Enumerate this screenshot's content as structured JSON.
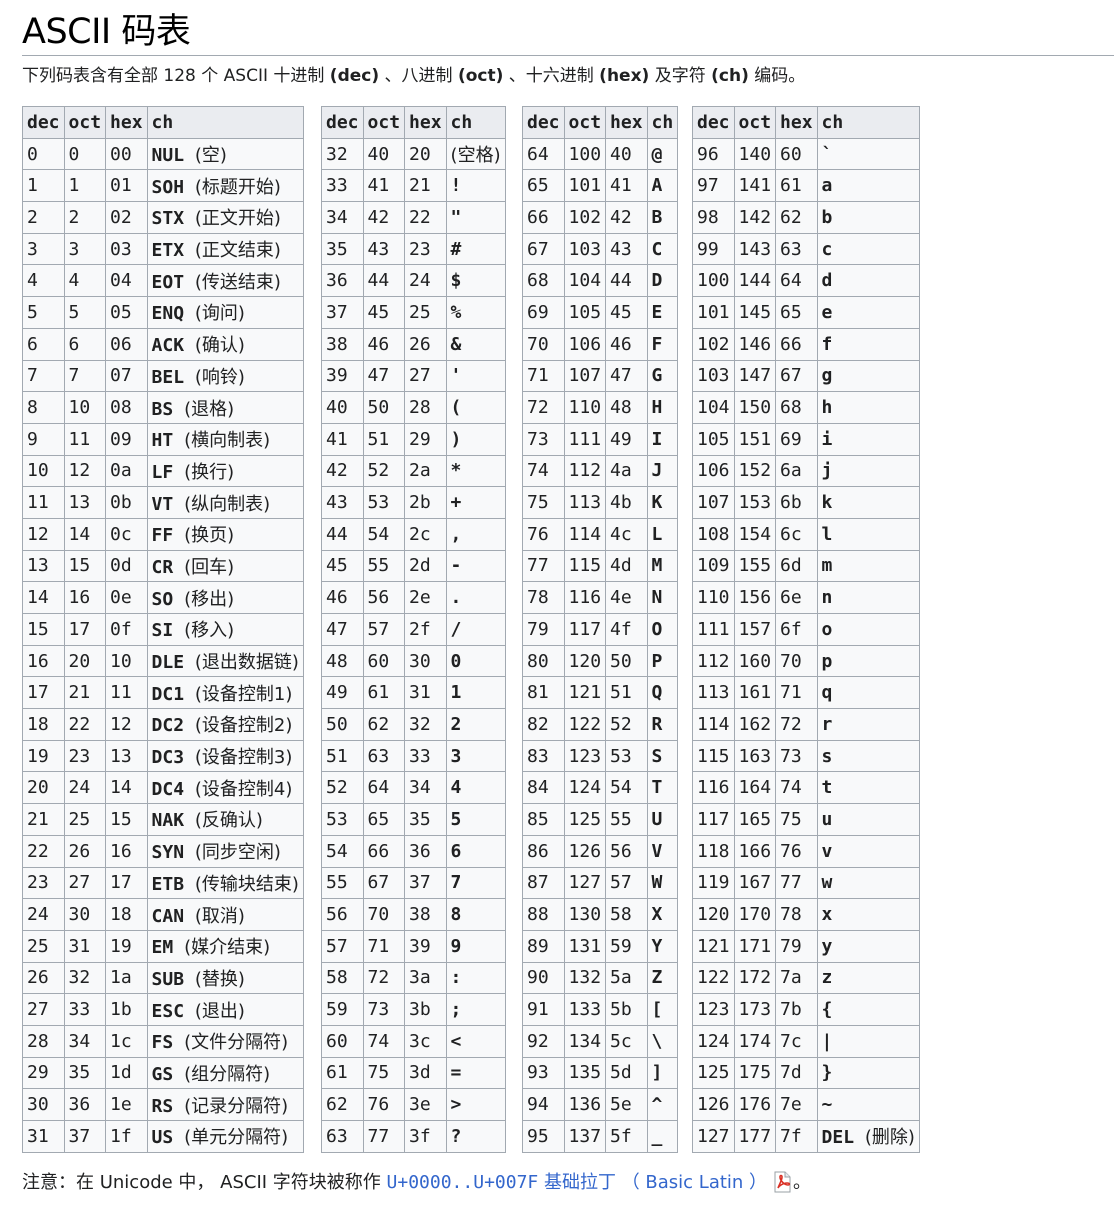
{
  "title": "ASCII 码表",
  "intro": {
    "prefix": "下列码表含有全部 128 个 ASCII 十进制 ",
    "dec": "(dec)",
    "sep1": " 、八进制 ",
    "oct": "(oct)",
    "sep2": " 、十六进制 ",
    "hex": "(hex)",
    "sep3": " 及字符 ",
    "ch": "(ch)",
    "suffix": " 编码。"
  },
  "headers": [
    "dec",
    "oct",
    "hex",
    "ch"
  ],
  "tables": [
    [
      [
        "0",
        "0",
        "00",
        "NUL",
        "(空)"
      ],
      [
        "1",
        "1",
        "01",
        "SOH",
        "(标题开始)"
      ],
      [
        "2",
        "2",
        "02",
        "STX",
        "(正文开始)"
      ],
      [
        "3",
        "3",
        "03",
        "ETX",
        "(正文结束)"
      ],
      [
        "4",
        "4",
        "04",
        "EOT",
        "(传送结束)"
      ],
      [
        "5",
        "5",
        "05",
        "ENQ",
        "(询问)"
      ],
      [
        "6",
        "6",
        "06",
        "ACK",
        "(确认)"
      ],
      [
        "7",
        "7",
        "07",
        "BEL",
        "(响铃)"
      ],
      [
        "8",
        "10",
        "08",
        "BS",
        "(退格)"
      ],
      [
        "9",
        "11",
        "09",
        "HT",
        "(横向制表)"
      ],
      [
        "10",
        "12",
        "0a",
        "LF",
        "(换行)"
      ],
      [
        "11",
        "13",
        "0b",
        "VT",
        "(纵向制表)"
      ],
      [
        "12",
        "14",
        "0c",
        "FF",
        "(换页)"
      ],
      [
        "13",
        "15",
        "0d",
        "CR",
        "(回车)"
      ],
      [
        "14",
        "16",
        "0e",
        "SO",
        "(移出)"
      ],
      [
        "15",
        "17",
        "0f",
        "SI",
        "(移入)"
      ],
      [
        "16",
        "20",
        "10",
        "DLE",
        "(退出数据链)"
      ],
      [
        "17",
        "21",
        "11",
        "DC1",
        "(设备控制1)"
      ],
      [
        "18",
        "22",
        "12",
        "DC2",
        "(设备控制2)"
      ],
      [
        "19",
        "23",
        "13",
        "DC3",
        "(设备控制3)"
      ],
      [
        "20",
        "24",
        "14",
        "DC4",
        "(设备控制4)"
      ],
      [
        "21",
        "25",
        "15",
        "NAK",
        "(反确认)"
      ],
      [
        "22",
        "26",
        "16",
        "SYN",
        "(同步空闲)"
      ],
      [
        "23",
        "27",
        "17",
        "ETB",
        "(传输块结束)"
      ],
      [
        "24",
        "30",
        "18",
        "CAN",
        "(取消)"
      ],
      [
        "25",
        "31",
        "19",
        "EM",
        "(媒介结束)"
      ],
      [
        "26",
        "32",
        "1a",
        "SUB",
        "(替换)"
      ],
      [
        "27",
        "33",
        "1b",
        "ESC",
        "(退出)"
      ],
      [
        "28",
        "34",
        "1c",
        "FS",
        "(文件分隔符)"
      ],
      [
        "29",
        "35",
        "1d",
        "GS",
        "(组分隔符)"
      ],
      [
        "30",
        "36",
        "1e",
        "RS",
        "(记录分隔符)"
      ],
      [
        "31",
        "37",
        "1f",
        "US",
        "(单元分隔符)"
      ]
    ],
    [
      [
        "32",
        "40",
        "20",
        "",
        "(空格)"
      ],
      [
        "33",
        "41",
        "21",
        "!",
        ""
      ],
      [
        "34",
        "42",
        "22",
        "\"",
        ""
      ],
      [
        "35",
        "43",
        "23",
        "#",
        ""
      ],
      [
        "36",
        "44",
        "24",
        "$",
        ""
      ],
      [
        "37",
        "45",
        "25",
        "%",
        ""
      ],
      [
        "38",
        "46",
        "26",
        "&",
        ""
      ],
      [
        "39",
        "47",
        "27",
        "'",
        ""
      ],
      [
        "40",
        "50",
        "28",
        "(",
        ""
      ],
      [
        "41",
        "51",
        "29",
        ")",
        ""
      ],
      [
        "42",
        "52",
        "2a",
        "*",
        ""
      ],
      [
        "43",
        "53",
        "2b",
        "+",
        ""
      ],
      [
        "44",
        "54",
        "2c",
        ",",
        ""
      ],
      [
        "45",
        "55",
        "2d",
        "-",
        ""
      ],
      [
        "46",
        "56",
        "2e",
        ".",
        ""
      ],
      [
        "47",
        "57",
        "2f",
        "/",
        ""
      ],
      [
        "48",
        "60",
        "30",
        "0",
        ""
      ],
      [
        "49",
        "61",
        "31",
        "1",
        ""
      ],
      [
        "50",
        "62",
        "32",
        "2",
        ""
      ],
      [
        "51",
        "63",
        "33",
        "3",
        ""
      ],
      [
        "52",
        "64",
        "34",
        "4",
        ""
      ],
      [
        "53",
        "65",
        "35",
        "5",
        ""
      ],
      [
        "54",
        "66",
        "36",
        "6",
        ""
      ],
      [
        "55",
        "67",
        "37",
        "7",
        ""
      ],
      [
        "56",
        "70",
        "38",
        "8",
        ""
      ],
      [
        "57",
        "71",
        "39",
        "9",
        ""
      ],
      [
        "58",
        "72",
        "3a",
        ":",
        ""
      ],
      [
        "59",
        "73",
        "3b",
        ";",
        ""
      ],
      [
        "60",
        "74",
        "3c",
        "<",
        ""
      ],
      [
        "61",
        "75",
        "3d",
        "=",
        ""
      ],
      [
        "62",
        "76",
        "3e",
        ">",
        ""
      ],
      [
        "63",
        "77",
        "3f",
        "?",
        ""
      ]
    ],
    [
      [
        "64",
        "100",
        "40",
        "@",
        ""
      ],
      [
        "65",
        "101",
        "41",
        "A",
        ""
      ],
      [
        "66",
        "102",
        "42",
        "B",
        ""
      ],
      [
        "67",
        "103",
        "43",
        "C",
        ""
      ],
      [
        "68",
        "104",
        "44",
        "D",
        ""
      ],
      [
        "69",
        "105",
        "45",
        "E",
        ""
      ],
      [
        "70",
        "106",
        "46",
        "F",
        ""
      ],
      [
        "71",
        "107",
        "47",
        "G",
        ""
      ],
      [
        "72",
        "110",
        "48",
        "H",
        ""
      ],
      [
        "73",
        "111",
        "49",
        "I",
        ""
      ],
      [
        "74",
        "112",
        "4a",
        "J",
        ""
      ],
      [
        "75",
        "113",
        "4b",
        "K",
        ""
      ],
      [
        "76",
        "114",
        "4c",
        "L",
        ""
      ],
      [
        "77",
        "115",
        "4d",
        "M",
        ""
      ],
      [
        "78",
        "116",
        "4e",
        "N",
        ""
      ],
      [
        "79",
        "117",
        "4f",
        "O",
        ""
      ],
      [
        "80",
        "120",
        "50",
        "P",
        ""
      ],
      [
        "81",
        "121",
        "51",
        "Q",
        ""
      ],
      [
        "82",
        "122",
        "52",
        "R",
        ""
      ],
      [
        "83",
        "123",
        "53",
        "S",
        ""
      ],
      [
        "84",
        "124",
        "54",
        "T",
        ""
      ],
      [
        "85",
        "125",
        "55",
        "U",
        ""
      ],
      [
        "86",
        "126",
        "56",
        "V",
        ""
      ],
      [
        "87",
        "127",
        "57",
        "W",
        ""
      ],
      [
        "88",
        "130",
        "58",
        "X",
        ""
      ],
      [
        "89",
        "131",
        "59",
        "Y",
        ""
      ],
      [
        "90",
        "132",
        "5a",
        "Z",
        ""
      ],
      [
        "91",
        "133",
        "5b",
        "[",
        ""
      ],
      [
        "92",
        "134",
        "5c",
        "\\",
        ""
      ],
      [
        "93",
        "135",
        "5d",
        "]",
        ""
      ],
      [
        "94",
        "136",
        "5e",
        "^",
        ""
      ],
      [
        "95",
        "137",
        "5f",
        "_",
        ""
      ]
    ],
    [
      [
        "96",
        "140",
        "60",
        "`",
        ""
      ],
      [
        "97",
        "141",
        "61",
        "a",
        ""
      ],
      [
        "98",
        "142",
        "62",
        "b",
        ""
      ],
      [
        "99",
        "143",
        "63",
        "c",
        ""
      ],
      [
        "100",
        "144",
        "64",
        "d",
        ""
      ],
      [
        "101",
        "145",
        "65",
        "e",
        ""
      ],
      [
        "102",
        "146",
        "66",
        "f",
        ""
      ],
      [
        "103",
        "147",
        "67",
        "g",
        ""
      ],
      [
        "104",
        "150",
        "68",
        "h",
        ""
      ],
      [
        "105",
        "151",
        "69",
        "i",
        ""
      ],
      [
        "106",
        "152",
        "6a",
        "j",
        ""
      ],
      [
        "107",
        "153",
        "6b",
        "k",
        ""
      ],
      [
        "108",
        "154",
        "6c",
        "l",
        ""
      ],
      [
        "109",
        "155",
        "6d",
        "m",
        ""
      ],
      [
        "110",
        "156",
        "6e",
        "n",
        ""
      ],
      [
        "111",
        "157",
        "6f",
        "o",
        ""
      ],
      [
        "112",
        "160",
        "70",
        "p",
        ""
      ],
      [
        "113",
        "161",
        "71",
        "q",
        ""
      ],
      [
        "114",
        "162",
        "72",
        "r",
        ""
      ],
      [
        "115",
        "163",
        "73",
        "s",
        ""
      ],
      [
        "116",
        "164",
        "74",
        "t",
        ""
      ],
      [
        "117",
        "165",
        "75",
        "u",
        ""
      ],
      [
        "118",
        "166",
        "76",
        "v",
        ""
      ],
      [
        "119",
        "167",
        "77",
        "w",
        ""
      ],
      [
        "120",
        "170",
        "78",
        "x",
        ""
      ],
      [
        "121",
        "171",
        "79",
        "y",
        ""
      ],
      [
        "122",
        "172",
        "7a",
        "z",
        ""
      ],
      [
        "123",
        "173",
        "7b",
        "{",
        ""
      ],
      [
        "124",
        "174",
        "7c",
        "|",
        ""
      ],
      [
        "125",
        "175",
        "7d",
        "}",
        ""
      ],
      [
        "126",
        "176",
        "7e",
        "~",
        ""
      ],
      [
        "127",
        "177",
        "7f",
        "DEL",
        "(删除)"
      ]
    ]
  ],
  "note": {
    "prefix": "注意：在 Unicode 中， ASCII 字符块被称作 ",
    "link_code": "U+0000..U+007F",
    "link_text": " 基础拉丁 （ Basic Latin ）",
    "suffix": "。",
    "icon": "pdf-icon",
    "link_color": "#3366cc"
  }
}
